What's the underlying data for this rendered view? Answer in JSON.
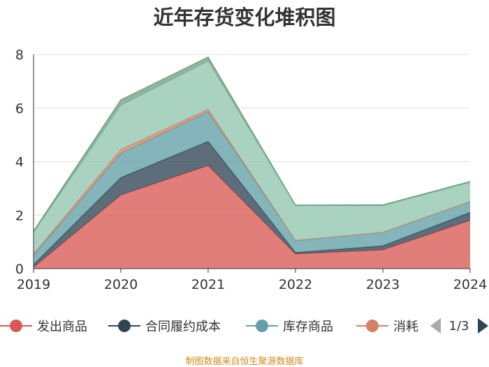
{
  "chart_data": {
    "type": "area",
    "stacked": true,
    "title": "近年存货变化堆积图",
    "xlabel": "",
    "ylabel": "",
    "categories": [
      "2019",
      "2020",
      "2021",
      "2022",
      "2023",
      "2024"
    ],
    "yticks": [
      "0",
      "2",
      "4",
      "6",
      "8"
    ],
    "ylim": [
      0,
      8
    ],
    "grid": true,
    "legend_position": "bottom",
    "series": [
      {
        "name": "发出商品",
        "color": "#d95a55",
        "values": [
          0.05,
          2.75,
          3.85,
          0.55,
          0.7,
          1.8
        ]
      },
      {
        "name": "合同履约成本",
        "color": "#2f4554",
        "values": [
          0.1,
          0.65,
          0.9,
          0.05,
          0.15,
          0.3
        ]
      },
      {
        "name": "库存商品",
        "color": "#61a0a8",
        "values": [
          0.35,
          0.9,
          1.1,
          0.45,
          0.5,
          0.4
        ]
      },
      {
        "name": "消耗",
        "color": "#d48265",
        "values": [
          0.05,
          0.15,
          0.1,
          0.01,
          0.01,
          0.01
        ]
      },
      {
        "name": "",
        "color": "#91c7ae",
        "values": [
          0.8,
          1.65,
          1.8,
          1.29,
          0.99,
          0.71
        ]
      },
      {
        "name": "",
        "color": "#749f83",
        "values": [
          0.05,
          0.2,
          0.15,
          0.02,
          0.03,
          0.03
        ]
      }
    ],
    "legend_visible": [
      "发出商品",
      "合同履约成本",
      "库存商品",
      "消耗"
    ],
    "legend_page": "1/3"
  },
  "source": "制图数据来自恒生聚源数据库"
}
